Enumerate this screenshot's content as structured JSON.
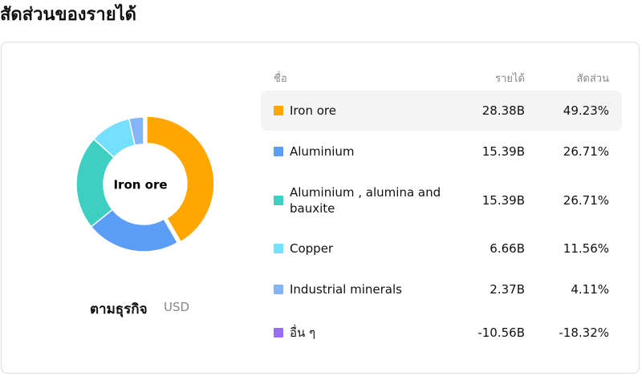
{
  "title": "สัดส่วนของรายได้",
  "subtitle": "ตามธุรกิจ",
  "unit": "USD",
  "chart_data": {
    "type": "donut",
    "categories": [
      "Iron ore",
      "Aluminium",
      "Aluminium , alumina and bauxite",
      "Copper",
      "Industrial minerals",
      "อื่น ๆ"
    ],
    "values": [
      49.23,
      26.71,
      26.71,
      11.56,
      4.11,
      -18.32
    ],
    "value_labels": [
      "49.23%",
      "26.71%",
      "26.71%",
      "11.56%",
      "4.11%",
      "-18.32%"
    ],
    "colors": [
      "#ffa600",
      "#5b9cf7",
      "#3dcfc1",
      "#74e0fb",
      "#84b5f8",
      "#9a6ef0"
    ],
    "highlight": 0
  },
  "table": {
    "headers": [
      "ชื่อ",
      "รายได้",
      "สัดส่วน"
    ],
    "revenue": [
      "28.38B",
      "15.39B",
      "15.39B",
      "6.66B",
      "2.37B",
      "-10.56B"
    ]
  }
}
